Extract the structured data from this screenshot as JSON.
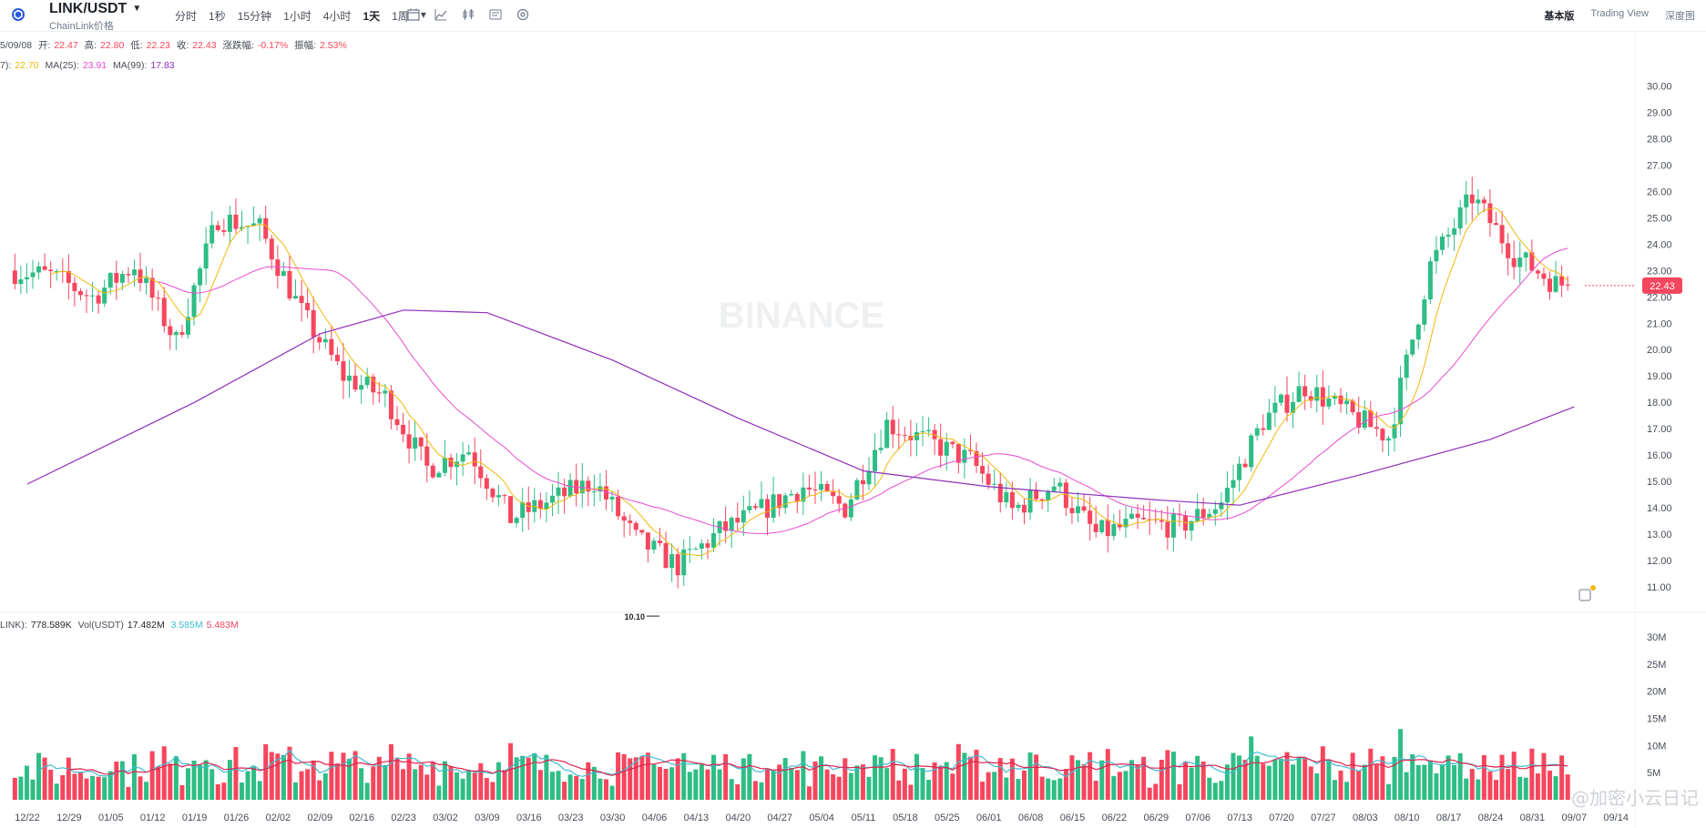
{
  "header": {
    "pair": "LINK/USDT",
    "subtitle": "ChainLink价格",
    "intervals": [
      "分时",
      "1秒",
      "15分钟",
      "1小时",
      "4小时",
      "1天",
      "1周"
    ],
    "active_interval": "1天",
    "views": [
      "基本版",
      "Trading View",
      "深度图"
    ],
    "active_view": "基本版",
    "tool_icons": [
      "calendar-icon",
      "line-chart-icon",
      "candle-icon",
      "indicator-icon",
      "settings-icon"
    ]
  },
  "ohlc_legend": {
    "date": "5/09/08",
    "open_label": "开:",
    "open": "22.47",
    "high_label": "高:",
    "high": "22.80",
    "low_label": "低:",
    "low": "22.23",
    "close_label": "收:",
    "close": "22.43",
    "change_label": "涨跌幅:",
    "change": "-0.17%",
    "amplitude_label": "振幅:",
    "amplitude": "2.53%"
  },
  "ma_legend": {
    "ma7_label": "7):",
    "ma7": "22.70",
    "ma25_label": "MA(25):",
    "ma25": "23.91",
    "ma99_label": "MA(99):",
    "ma99": "17.83"
  },
  "vol_legend": {
    "label": "LINK):",
    "value": "778.589K",
    "usdt_label": "Vol(USDT)",
    "usdt_value": "17.482M",
    "ma1": "3.585M",
    "ma2": "5.483M"
  },
  "watermark": "BINANCE",
  "current_price": "22.43",
  "low_marker": "10.10",
  "footer_watermark": "@加密小云日记",
  "colors": {
    "up": "#2ebd85",
    "down": "#f6465d",
    "ma7": "#f0b90b",
    "ma25": "#e84bd0",
    "ma99": "#8e2fba",
    "vol_ma1": "#3fbcd0",
    "vol_ma2": "#e0244e"
  },
  "chart_data": {
    "type": "candlestick",
    "x_tick_labels": [
      "12/22",
      "12/29",
      "01/05",
      "01/12",
      "01/19",
      "01/26",
      "02/02",
      "02/09",
      "02/16",
      "02/23",
      "03/02",
      "03/09",
      "03/16",
      "03/23",
      "03/30",
      "04/06",
      "04/13",
      "04/20",
      "04/27",
      "05/04",
      "05/11",
      "05/18",
      "05/25",
      "06/01",
      "06/08",
      "06/15",
      "06/22",
      "06/29",
      "07/06",
      "07/13",
      "07/20",
      "07/27",
      "08/03",
      "08/10",
      "08/17",
      "08/24",
      "08/31",
      "09/07",
      "09/14"
    ],
    "y_tick_labels": [
      "11.00",
      "12.00",
      "13.00",
      "14.00",
      "15.00",
      "16.00",
      "17.00",
      "18.00",
      "19.00",
      "20.00",
      "21.00",
      "22.00",
      "23.00",
      "24.00",
      "25.00",
      "26.00",
      "27.00",
      "28.00",
      "29.00",
      "30.00"
    ],
    "ylim": [
      10.0,
      30.5
    ],
    "volume_tick_labels": [
      "5M",
      "10M",
      "15M",
      "20M",
      "25M",
      "30M"
    ],
    "volume_ylim": [
      0,
      31
    ],
    "weekly_close_path": [
      {
        "w": "12/22",
        "o": 23.0,
        "c": 22.8
      },
      {
        "w": "12/29",
        "o": 22.8,
        "c": 22.0
      },
      {
        "w": "01/05",
        "o": 22.0,
        "c": 23.2
      },
      {
        "w": "01/12",
        "o": 23.2,
        "c": 20.3
      },
      {
        "w": "01/19",
        "o": 20.3,
        "c": 25.0
      },
      {
        "w": "01/26",
        "o": 25.0,
        "c": 24.6
      },
      {
        "w": "02/02",
        "o": 24.6,
        "c": 21.4
      },
      {
        "w": "02/09",
        "o": 21.4,
        "c": 19.0
      },
      {
        "w": "02/16",
        "o": 19.0,
        "c": 18.2
      },
      {
        "w": "02/23",
        "o": 18.2,
        "c": 15.5
      },
      {
        "w": "03/02",
        "o": 15.5,
        "c": 16.2
      },
      {
        "w": "03/09",
        "o": 16.2,
        "c": 13.6
      },
      {
        "w": "03/16",
        "o": 13.6,
        "c": 14.3
      },
      {
        "w": "03/23",
        "o": 14.3,
        "c": 15.0
      },
      {
        "w": "03/30",
        "o": 15.0,
        "c": 12.8
      },
      {
        "w": "04/06",
        "o": 12.8,
        "c": 11.8
      },
      {
        "w": "04/13",
        "o": 11.8,
        "c": 13.1
      },
      {
        "w": "04/20",
        "o": 13.1,
        "c": 13.9
      },
      {
        "w": "04/27",
        "o": 13.9,
        "c": 14.8
      },
      {
        "w": "05/04",
        "o": 14.8,
        "c": 14.0
      },
      {
        "w": "05/11",
        "o": 14.0,
        "c": 17.2
      },
      {
        "w": "05/18",
        "o": 17.2,
        "c": 16.5
      },
      {
        "w": "05/25",
        "o": 16.5,
        "c": 15.8
      },
      {
        "w": "06/01",
        "o": 15.8,
        "c": 13.9
      },
      {
        "w": "06/08",
        "o": 13.9,
        "c": 14.9
      },
      {
        "w": "06/15",
        "o": 14.9,
        "c": 13.0
      },
      {
        "w": "06/22",
        "o": 13.0,
        "c": 13.4
      },
      {
        "w": "06/29",
        "o": 13.4,
        "c": 13.3
      },
      {
        "w": "07/06",
        "o": 13.3,
        "c": 14.2
      },
      {
        "w": "07/13",
        "o": 14.2,
        "c": 17.3
      },
      {
        "w": "07/20",
        "o": 17.3,
        "c": 18.6
      },
      {
        "w": "07/27",
        "o": 18.6,
        "c": 17.6
      },
      {
        "w": "08/03",
        "o": 17.6,
        "c": 16.7
      },
      {
        "w": "08/10",
        "o": 16.7,
        "c": 23.2
      },
      {
        "w": "08/17",
        "o": 23.2,
        "c": 25.8
      },
      {
        "w": "08/24",
        "o": 25.8,
        "c": 23.6
      },
      {
        "w": "08/31",
        "o": 23.6,
        "c": 22.5
      },
      {
        "w": "09/07",
        "o": 22.5,
        "c": 22.43
      }
    ],
    "ma99_path": [
      {
        "w": "12/22",
        "v": 14.9
      },
      {
        "w": "01/19",
        "v": 18.0
      },
      {
        "w": "02/09",
        "v": 20.6
      },
      {
        "w": "02/23",
        "v": 21.5
      },
      {
        "w": "03/09",
        "v": 21.4
      },
      {
        "w": "03/30",
        "v": 19.6
      },
      {
        "w": "04/20",
        "v": 17.4
      },
      {
        "w": "05/11",
        "v": 15.4
      },
      {
        "w": "06/01",
        "v": 14.8
      },
      {
        "w": "06/29",
        "v": 14.3
      },
      {
        "w": "07/13",
        "v": 14.1
      },
      {
        "w": "08/03",
        "v": 15.3
      },
      {
        "w": "08/24",
        "v": 16.6
      },
      {
        "w": "09/07",
        "v": 17.83
      }
    ]
  }
}
